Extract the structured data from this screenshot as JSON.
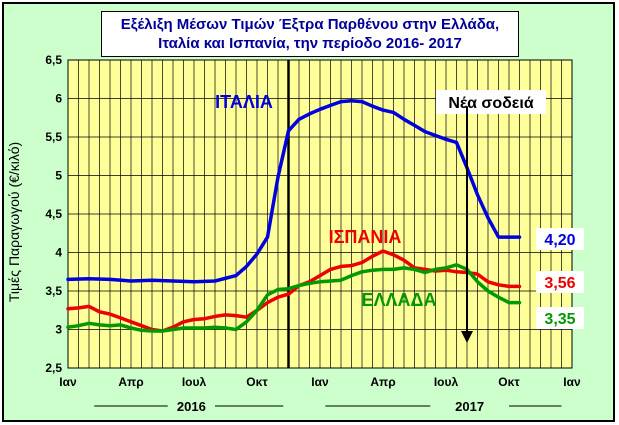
{
  "chart_data": {
    "type": "line",
    "title_lines": [
      "Εξέλιξη Μέσων Τιμών Έξτρα Παρθένου στην Ελλάδα,",
      "Ιταλία και Ισπανία, την περίοδο 2016- 2017"
    ],
    "ylabel": "Τιμές Παραγωγού (€/κιλό)",
    "ylim": [
      2.5,
      6.5
    ],
    "yticks": [
      "2,5",
      "3",
      "3,5",
      "4",
      "4,5",
      "5",
      "5,5",
      "6",
      "6,5"
    ],
    "xlim": [
      0,
      48
    ],
    "xtick_labels": [
      "Ιαν",
      "Απρ",
      "Ιουλ",
      "Οκτ",
      "Ιαν",
      "Απρ",
      "Ιουλ",
      "Οκτ",
      "Ιαν"
    ],
    "year_labels": [
      "2016",
      "2017"
    ],
    "grid": true,
    "plot_background": "#ffff99",
    "frame_background": "#ccffcc",
    "divider_x": 21,
    "series": [
      {
        "name": "ΙΤΑΛΙΑ",
        "color": "#0000dd",
        "end_label": "4,20",
        "x": [
          0,
          2,
          4,
          6,
          8,
          10,
          12,
          14,
          16,
          17,
          18,
          19,
          20,
          21,
          22,
          23,
          24,
          25,
          26,
          27,
          28,
          29,
          30,
          31,
          32,
          33,
          34,
          35,
          36,
          37,
          38,
          39,
          40,
          41,
          42,
          43
        ],
        "values": [
          3.65,
          3.66,
          3.65,
          3.63,
          3.64,
          3.63,
          3.62,
          3.63,
          3.7,
          3.82,
          3.98,
          4.2,
          4.98,
          5.58,
          5.73,
          5.8,
          5.86,
          5.91,
          5.96,
          5.97,
          5.96,
          5.9,
          5.85,
          5.82,
          5.73,
          5.65,
          5.57,
          5.52,
          5.47,
          5.43,
          5.1,
          4.75,
          4.45,
          4.2,
          4.2,
          4.2
        ]
      },
      {
        "name": "ΙΣΠΑΝΙΑ",
        "color": "#ee0000",
        "end_label": "3,56",
        "x": [
          0,
          1,
          2,
          3,
          4,
          5,
          6,
          7,
          8,
          9,
          10,
          11,
          12,
          13,
          14,
          15,
          16,
          17,
          18,
          19,
          20,
          21,
          22,
          23,
          24,
          25,
          26,
          27,
          28,
          29,
          30,
          31,
          32,
          33,
          34,
          35,
          36,
          37,
          38,
          39,
          40,
          41,
          42,
          43
        ],
        "values": [
          3.27,
          3.28,
          3.3,
          3.23,
          3.2,
          3.15,
          3.1,
          3.05,
          3.0,
          2.98,
          3.03,
          3.1,
          3.13,
          3.14,
          3.17,
          3.19,
          3.18,
          3.16,
          3.25,
          3.35,
          3.42,
          3.46,
          3.57,
          3.62,
          3.7,
          3.78,
          3.82,
          3.83,
          3.87,
          3.95,
          4.02,
          3.97,
          3.9,
          3.8,
          3.78,
          3.76,
          3.77,
          3.75,
          3.74,
          3.72,
          3.62,
          3.58,
          3.56,
          3.56
        ]
      },
      {
        "name": "ΕΛΛΑΔΑ",
        "color": "#009900",
        "end_label": "3,35",
        "x": [
          0,
          1,
          2,
          3,
          4,
          5,
          6,
          7,
          8,
          9,
          10,
          11,
          12,
          13,
          14,
          15,
          16,
          17,
          18,
          19,
          20,
          21,
          22,
          23,
          24,
          25,
          26,
          27,
          28,
          29,
          30,
          31,
          32,
          33,
          34,
          35,
          36,
          37,
          38,
          39,
          40,
          41,
          42,
          43
        ],
        "values": [
          3.03,
          3.05,
          3.08,
          3.06,
          3.05,
          3.06,
          3.02,
          2.99,
          2.98,
          2.98,
          3.0,
          3.02,
          3.02,
          3.02,
          3.03,
          3.02,
          3.0,
          3.1,
          3.25,
          3.45,
          3.52,
          3.53,
          3.57,
          3.6,
          3.62,
          3.63,
          3.64,
          3.7,
          3.75,
          3.77,
          3.78,
          3.78,
          3.8,
          3.78,
          3.74,
          3.78,
          3.8,
          3.84,
          3.78,
          3.62,
          3.5,
          3.42,
          3.35,
          3.35
        ]
      }
    ],
    "annotation": {
      "text": "Νέα σοδειά",
      "arrow_x": 38,
      "arrow_from_y": 5.9,
      "arrow_to_y": 2.85
    }
  }
}
